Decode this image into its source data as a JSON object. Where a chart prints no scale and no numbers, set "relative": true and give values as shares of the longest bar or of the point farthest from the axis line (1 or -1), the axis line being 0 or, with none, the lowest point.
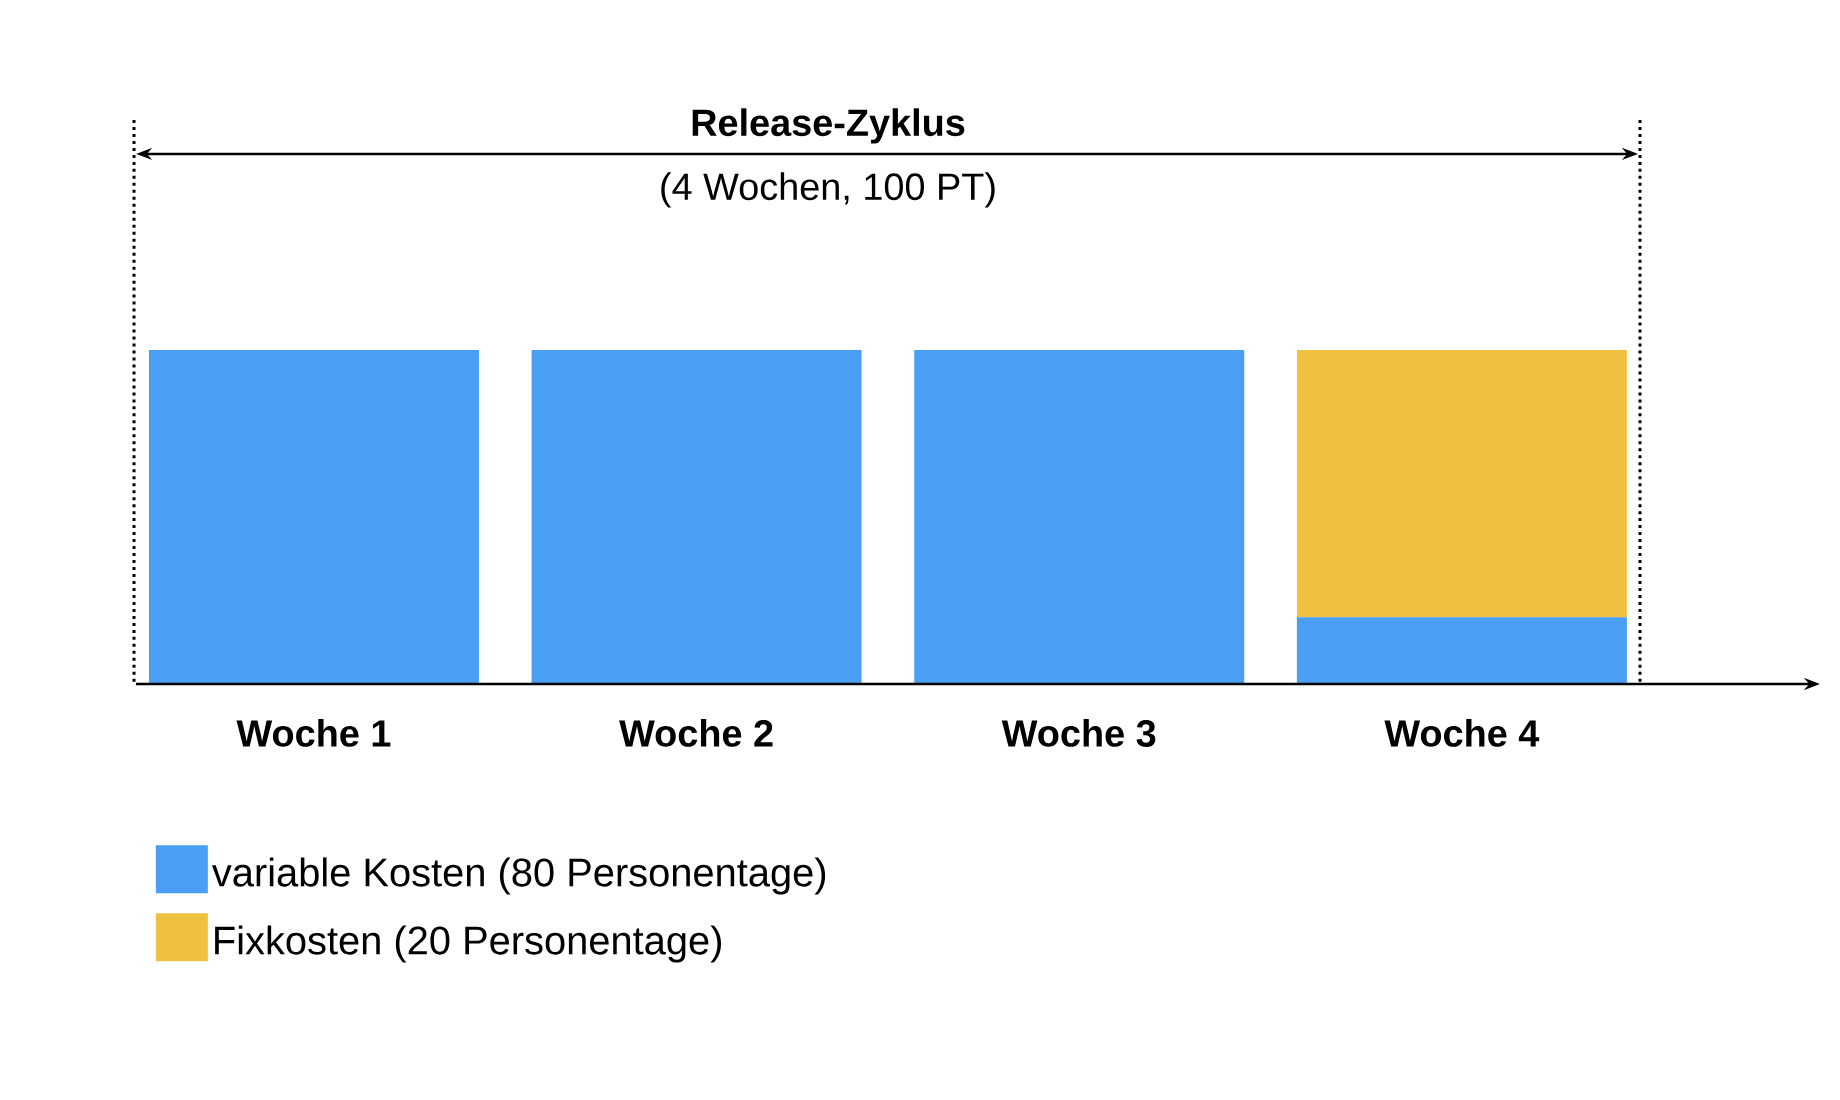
{
  "chart_data": {
    "type": "bar",
    "title": "Release-Zyklus",
    "subtitle": "(4 Wochen, 100 PT)",
    "categories": [
      "Woche 1",
      "Woche 2",
      "Woche 3",
      "Woche 4"
    ],
    "series": [
      {
        "name": "variable Kosten (80 Personentage)",
        "color": "#4a9ff5",
        "values": [
          1,
          1,
          1,
          0.2
        ]
      },
      {
        "name": "Fixkosten (20 Personentage)",
        "color": "#f0c040",
        "values": [
          0,
          0,
          0,
          0.8
        ]
      }
    ],
    "stacked": true,
    "relative": true,
    "legend": "bottom left"
  }
}
